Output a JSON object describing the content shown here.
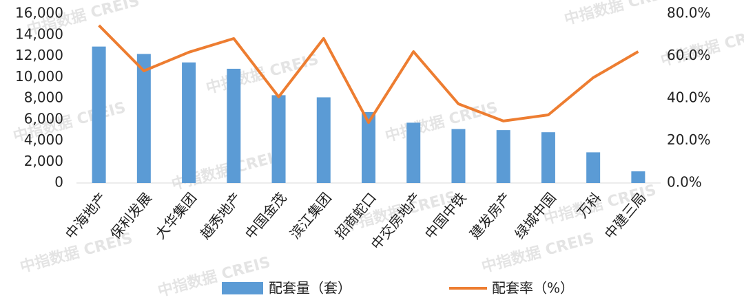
{
  "chart_data": {
    "type": "bar-line",
    "watermark": "中指数据 CREIS",
    "categories": [
      "中海地产",
      "保利发展",
      "大华集团",
      "越秀地产",
      "中国金茂",
      "滨江集团",
      "招商蛇口",
      "中交房地产",
      "中国中铁",
      "建发房产",
      "绿城中国",
      "万科",
      "中建三局"
    ],
    "series": [
      {
        "name": "配套量（套）",
        "type": "bar",
        "color": "#5b9bd5",
        "values": [
          12900,
          12200,
          11400,
          10800,
          8300,
          8100,
          6700,
          5700,
          5100,
          5000,
          4800,
          2900,
          1100
        ]
      },
      {
        "name": "配套率（%）",
        "type": "line",
        "axis": "y2",
        "color": "#ed7d31",
        "values": [
          74.5,
          53.0,
          61.8,
          68.3,
          40.7,
          68.3,
          28.6,
          62.1,
          37.4,
          29.3,
          32.2,
          49.8,
          62.1
        ]
      }
    ],
    "ylim": [
      0,
      16000
    ],
    "yticks": [
      0,
      {
        "value": 2000,
        "label": "2,000"
      },
      {
        "value": 4000,
        "label": "4,000"
      },
      {
        "value": 6000,
        "label": "6,000"
      },
      {
        "value": 8000,
        "label": "8,000"
      },
      {
        "value": 10000,
        "label": "10,000"
      },
      {
        "value": 12000,
        "label": "12,000"
      },
      {
        "value": 14000,
        "label": "14,000"
      },
      {
        "value": 16000,
        "label": "16,000"
      }
    ],
    "y2lim": [
      0,
      80
    ],
    "y2ticks": [
      {
        "value": 0,
        "label": "0.0%"
      },
      {
        "value": 20,
        "label": "20.0%"
      },
      {
        "value": 40,
        "label": "40.0%"
      },
      {
        "value": 60,
        "label": "60.0%"
      },
      {
        "value": 80,
        "label": "80.0%"
      }
    ]
  }
}
